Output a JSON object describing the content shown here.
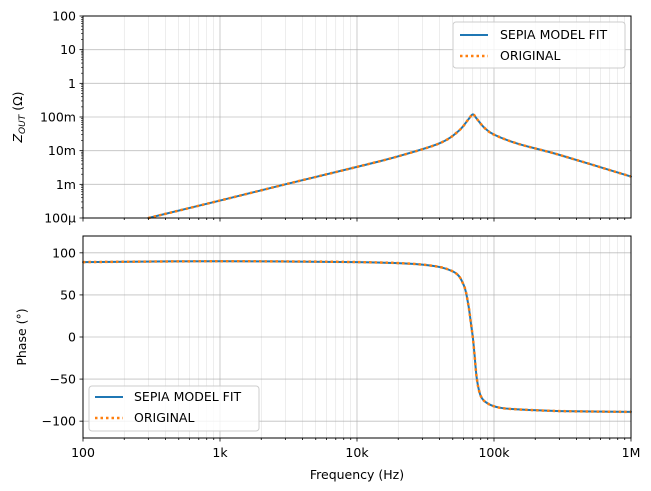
{
  "colors": {
    "fit": "#1f77b4",
    "original": "#ff7f0e",
    "grid": "#b0b0b0"
  },
  "chart_data": [
    {
      "type": "line",
      "xscale": "log",
      "yscale": "log",
      "xlim": [
        100,
        1000000
      ],
      "ylim": [
        0.0001,
        100
      ],
      "ylabel_main": "Z",
      "ylabel_sub": "OUT",
      "ylabel_unit": "(Ω)",
      "yticks": [
        0.0001,
        0.001,
        0.01,
        0.1,
        1,
        10,
        100
      ],
      "ytick_labels": [
        "100µ",
        "1m",
        "10m",
        "100m",
        "1",
        "10",
        "100"
      ],
      "grid": true,
      "legend_position": "top-right",
      "legend": [
        "SEPIA MODEL FIT",
        "ORIGINAL"
      ],
      "series": [
        {
          "name": "SEPIA MODEL FIT",
          "style": "solid",
          "x": [
            300,
            1000,
            3000,
            10000,
            20000,
            40000,
            55000,
            65000,
            70000,
            75000,
            85000,
            100000,
            150000,
            300000,
            1000000
          ],
          "y": [
            0.0001,
            0.00033,
            0.001,
            0.0033,
            0.0068,
            0.0165,
            0.038,
            0.085,
            0.12,
            0.088,
            0.048,
            0.03,
            0.016,
            0.0075,
            0.0017
          ]
        },
        {
          "name": "ORIGINAL",
          "style": "dotted",
          "x": [
            300,
            1000,
            3000,
            10000,
            20000,
            40000,
            55000,
            65000,
            70000,
            75000,
            85000,
            100000,
            150000,
            300000,
            1000000
          ],
          "y": [
            0.0001,
            0.00033,
            0.001,
            0.0033,
            0.0068,
            0.0165,
            0.038,
            0.085,
            0.12,
            0.088,
            0.048,
            0.03,
            0.016,
            0.0075,
            0.0017
          ]
        }
      ]
    },
    {
      "type": "line",
      "xscale": "log",
      "xlim": [
        100,
        1000000
      ],
      "ylim": [
        -120,
        120
      ],
      "xlabel": "Frequency (Hz)",
      "ylabel": "Phase (°)",
      "xticks": [
        100,
        1000,
        10000,
        100000,
        1000000
      ],
      "xtick_labels": [
        "100",
        "1k",
        "10k",
        "100k",
        "1M"
      ],
      "yticks": [
        -100,
        -50,
        0,
        50,
        100
      ],
      "ytick_labels": [
        "−100",
        "−50",
        "0",
        "50",
        "100"
      ],
      "grid": true,
      "legend_position": "bottom-left",
      "legend": [
        "SEPIA MODEL FIT",
        "ORIGINAL"
      ],
      "series": [
        {
          "name": "SEPIA MODEL FIT",
          "style": "solid",
          "x": [
            100,
            1000,
            10000,
            30000,
            50000,
            60000,
            65000,
            68000,
            70000,
            72000,
            75000,
            80000,
            90000,
            110000,
            150000,
            300000,
            1000000
          ],
          "y": [
            89,
            90,
            89,
            86,
            78,
            62,
            38,
            15,
            0,
            -20,
            -50,
            -70,
            -79,
            -84,
            -86,
            -88,
            -89
          ]
        },
        {
          "name": "ORIGINAL",
          "style": "dotted",
          "x": [
            100,
            1000,
            10000,
            30000,
            50000,
            60000,
            65000,
            68000,
            70000,
            72000,
            75000,
            80000,
            90000,
            110000,
            150000,
            300000,
            1000000
          ],
          "y": [
            89,
            90,
            89,
            86,
            78,
            62,
            38,
            15,
            0,
            -20,
            -50,
            -70,
            -79,
            -84,
            -86,
            -88,
            -89
          ]
        }
      ]
    }
  ]
}
